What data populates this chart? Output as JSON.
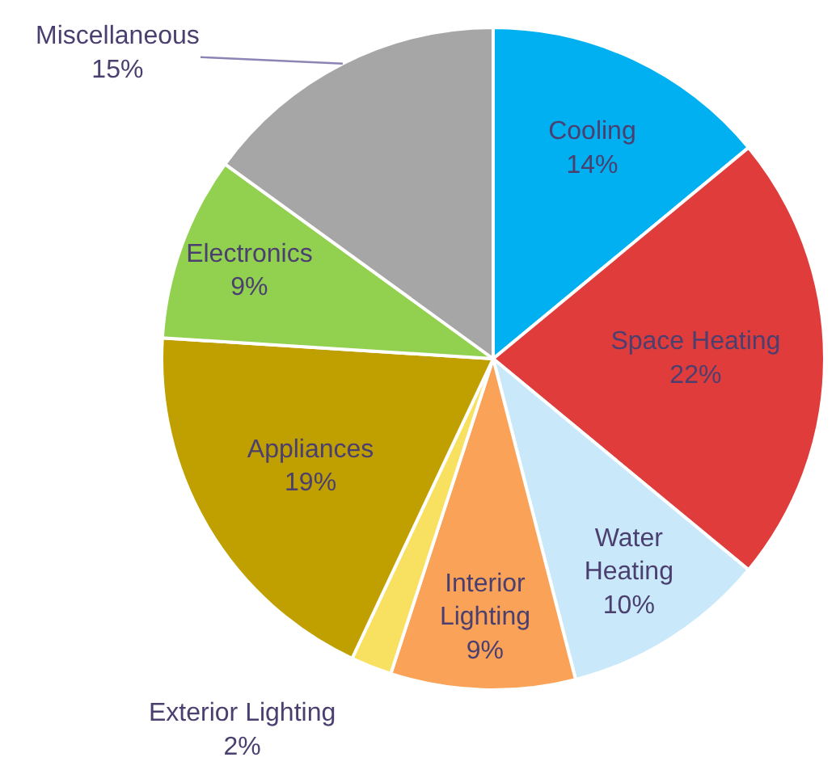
{
  "chart_data": {
    "type": "pie",
    "categories": [
      "Cooling",
      "Space Heating",
      "Water Heating",
      "Interior Lighting",
      "Exterior Lighting",
      "Appliances",
      "Electronics",
      "Miscellaneous"
    ],
    "values": [
      14,
      22,
      10,
      9,
      2,
      19,
      9,
      15
    ],
    "colors": [
      "#00b0f0",
      "#e03c3c",
      "#c9e9fb",
      "#f9a258",
      "#f8e060",
      "#bfa000",
      "#92d050",
      "#a6a6a6"
    ],
    "value_labels": [
      "14%",
      "22%",
      "10%",
      "9%",
      "2%",
      "19%",
      "9%",
      "15%"
    ]
  }
}
